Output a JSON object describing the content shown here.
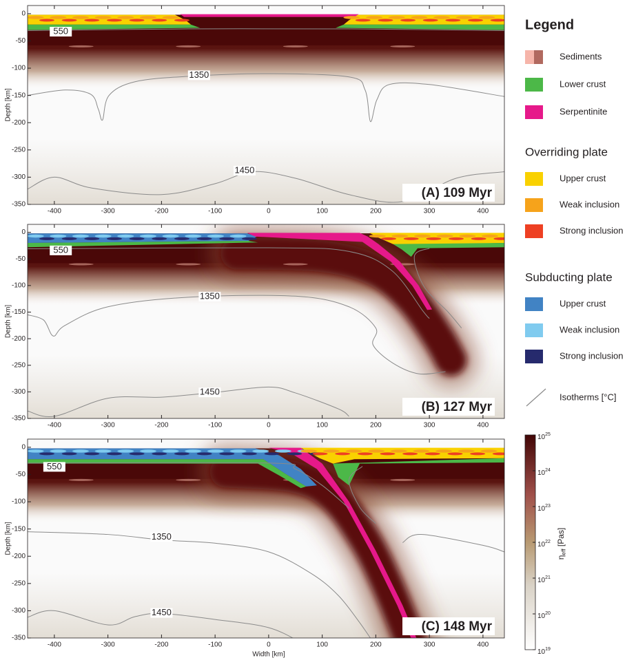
{
  "chart_data": [
    {
      "type": "field",
      "label": "(A) 109 Myr",
      "ylabel": "Depth [km]",
      "xlim": [
        -450,
        440
      ],
      "ylim": [
        -350,
        15
      ],
      "xticks": [
        -400,
        -300,
        -200,
        -100,
        0,
        100,
        200,
        300,
        400
      ],
      "yticks": [
        0,
        -50,
        -100,
        -150,
        -200,
        -250,
        -300,
        -350
      ],
      "isotherms": [
        550,
        1350,
        1450
      ]
    },
    {
      "type": "field",
      "label": "(B) 127 Myr",
      "ylabel": "Depth [km]",
      "xlim": [
        -450,
        440
      ],
      "ylim": [
        -350,
        15
      ],
      "xticks": [
        -400,
        -300,
        -200,
        -100,
        0,
        100,
        200,
        300,
        400
      ],
      "yticks": [
        0,
        -50,
        -100,
        -150,
        -200,
        -250,
        -300,
        -350
      ],
      "isotherms": [
        550,
        1350,
        1450
      ]
    },
    {
      "type": "field",
      "label": "(C) 148 Myr",
      "ylabel": "Depth [km]",
      "xlabel": "Width [km]",
      "xlim": [
        -450,
        440
      ],
      "ylim": [
        -350,
        15
      ],
      "xticks": [
        -400,
        -300,
        -200,
        -100,
        0,
        100,
        200,
        300,
        400
      ],
      "yticks": [
        0,
        -50,
        -100,
        -150,
        -200,
        -250,
        -300,
        -350
      ],
      "isotherms": [
        550,
        1350,
        1450
      ]
    },
    {
      "type": "colorbar",
      "label": "η_eff [Pas]",
      "log_scale": true,
      "ylim": [
        1e+19,
        1e+25
      ],
      "yticks": [
        {
          "value": 1e+19,
          "label": "10^19"
        },
        {
          "value": 1e+20,
          "label": "10^20"
        },
        {
          "value": 1e+21,
          "label": "10^21"
        },
        {
          "value": 1e+22,
          "label": "10^22"
        },
        {
          "value": 1e+23,
          "label": "10^23"
        },
        {
          "value": 1e+24,
          "label": "10^24"
        },
        {
          "value": 1e+25,
          "label": "10^25"
        }
      ]
    }
  ],
  "legend": {
    "title": "Legend",
    "items": [
      {
        "name": "Sediments",
        "colors": [
          "#f6b5aa",
          "#b1695f"
        ]
      },
      {
        "name": "Lower crust",
        "colors": [
          "#4cb848"
        ]
      },
      {
        "name": "Serpentinite",
        "colors": [
          "#e6198a"
        ]
      }
    ],
    "groups": [
      {
        "title": "Overriding plate",
        "items": [
          {
            "name": "Upper crust",
            "colors": [
              "#f9d100"
            ]
          },
          {
            "name": "Weak inclusion",
            "colors": [
              "#f6a31b"
            ]
          },
          {
            "name": "Strong inclusion",
            "colors": [
              "#ee4023"
            ]
          }
        ]
      },
      {
        "title": "Subducting plate",
        "items": [
          {
            "name": "Upper crust",
            "colors": [
              "#4183c4"
            ]
          },
          {
            "name": "Weak inclusion",
            "colors": [
              "#80cbef"
            ]
          },
          {
            "name": "Strong inclusion",
            "colors": [
              "#262a6d"
            ]
          }
        ]
      }
    ],
    "isotherm_item": "Isotherms [°C]"
  }
}
